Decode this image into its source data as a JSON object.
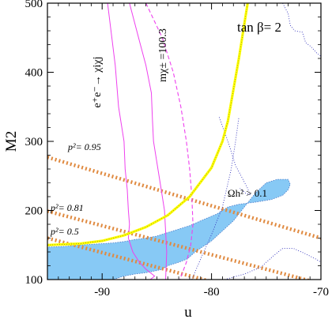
{
  "chart_data": {
    "type": "line",
    "title": "",
    "xlabel": "u",
    "ylabel": "M2",
    "xlim": [
      -95,
      -70
    ],
    "ylim": [
      100,
      500
    ],
    "xticks": [
      -90,
      -80,
      -70
    ],
    "yticks": [
      100,
      200,
      300,
      400,
      500
    ],
    "xtick_labels": [
      "-90",
      "-80",
      "-70"
    ],
    "ytick_labels": [
      "100",
      "200",
      "300",
      "400",
      "500"
    ],
    "grid": false,
    "colors": {
      "region": "#87c9f5",
      "boundary": "#ffff00",
      "lep_contour": "#ee40ee",
      "p2_lines": "#e08a40",
      "dotted": "#3333bb"
    },
    "annotations": {
      "tanbeta": "tan β= 2",
      "omega": "Ωh² > 0.1",
      "lep": "e⁺e⁻→ χiχj",
      "chargino": "mχ± =100.3",
      "p2_095": "p²= 0.95",
      "p2_081": "p²= 0.81",
      "p2_05": "p²= 0.5"
    },
    "series": [
      {
        "name": "",
        "style": "yellow-boundary",
        "x": [
          -95,
          -92,
          -90,
          -88,
          -86,
          -84,
          -82,
          -80,
          -79,
          -78.5,
          -78,
          -77.5,
          -77,
          -76.7
        ],
        "y": [
          150,
          152,
          156,
          164,
          176,
          193,
          220,
          262,
          300,
          330,
          375,
          420,
          470,
          500
        ]
      },
      {
        "name": "",
        "style": "p2-band",
        "x": [
          -95,
          -70
        ],
        "y": [
          277,
          160
        ]
      },
      {
        "name": "",
        "style": "p2-band",
        "x": [
          -95,
          -70
        ],
        "y": [
          199,
          94
        ]
      },
      {
        "name": "",
        "style": "p2-band",
        "x": [
          -95,
          -70
        ],
        "y": [
          160,
          55
        ]
      },
      {
        "name": "",
        "style": "lep-solid",
        "x": [
          -89.5,
          -88.8,
          -88.5,
          -88,
          -87.9,
          -87.7,
          -87.6,
          -87.5,
          -87.6,
          -87.4,
          -87.2,
          -86.6,
          -86.0,
          -85.2,
          -85.6
        ],
        "y": [
          500,
          410,
          350,
          300,
          260,
          230,
          200,
          180,
          160,
          150,
          140,
          125,
          115,
          105,
          100
        ]
      },
      {
        "name": "",
        "style": "lep-solid",
        "x": [
          -87.5,
          -86.5,
          -86.0,
          -85.5,
          -85.4,
          -85.3,
          -85.0,
          -84.7,
          -84.3,
          -84.1,
          -84.2
        ],
        "y": [
          500,
          440,
          410,
          370,
          330,
          300,
          270,
          240,
          200,
          140,
          100
        ]
      },
      {
        "name": "",
        "style": "lep-dashed",
        "x": [
          -86.0,
          -84.5,
          -83.5,
          -82.8,
          -82.3,
          -82.0,
          -81.8,
          -81.7,
          -81.9,
          -82.3,
          -82.9
        ],
        "y": [
          500,
          450,
          400,
          350,
          300,
          260,
          220,
          180,
          150,
          125,
          100
        ]
      },
      {
        "name": "",
        "style": "dotted",
        "x": [
          -73.5,
          -73.0,
          -72.8,
          -72.4,
          -71.7,
          -71.4,
          -70.9,
          -70.4,
          -70
        ],
        "y": [
          500,
          485,
          468,
          460,
          458,
          443,
          437,
          428,
          423
        ]
      },
      {
        "name": "",
        "style": "dotted",
        "x": [
          -81.8,
          -81.0,
          -80.0,
          -79.0,
          -78.2,
          -77.8,
          -77.5
        ],
        "y": [
          100,
          130,
          165,
          205,
          260,
          300,
          335
        ]
      },
      {
        "name": "",
        "style": "dotted",
        "x": [
          -79.3,
          -78.5,
          -77.8,
          -77.3,
          -76.7,
          -76.5,
          -76.9,
          -77.4
        ],
        "y": [
          335,
          300,
          265,
          250,
          232,
          223,
          225,
          232
        ]
      },
      {
        "name": "",
        "style": "dotted",
        "x": [
          -78.8,
          -77.0,
          -75.5,
          -74.3,
          -73.5,
          -72.5,
          -71.5,
          -70.5,
          -70
        ],
        "y": [
          100,
          108,
          118,
          135,
          145,
          145,
          138,
          130,
          125
        ]
      }
    ],
    "regions": [
      {
        "name": "",
        "style": "blue-region",
        "x": [
          -95,
          -92,
          -89,
          -88,
          -87,
          -86,
          -85,
          -84.5,
          -84,
          -83,
          -82.2,
          -81.5,
          -80.0,
          -78.0,
          -77.0,
          -76.0,
          -75.0,
          -74.0,
          -73.0,
          -72.8,
          -73.0,
          -73.5,
          -74.5,
          -76.0,
          -77.5,
          -78.5,
          -79.5,
          -81.0,
          -82.0,
          -83.0,
          -84.0,
          -85.0,
          -86.0,
          -87.0,
          -88.0,
          -89.0,
          -90.0,
          -92.0,
          -93.5,
          -95.0
        ],
        "y": [
          100,
          100,
          100,
          105,
          108,
          110,
          113,
          115,
          120,
          125,
          130,
          140,
          156,
          185,
          205,
          225,
          240,
          245,
          245,
          238,
          230,
          222,
          216,
          212,
          209,
          205,
          195,
          185,
          178,
          173,
          168,
          163,
          160,
          158,
          155,
          153,
          152,
          150,
          148,
          147
        ]
      }
    ]
  }
}
